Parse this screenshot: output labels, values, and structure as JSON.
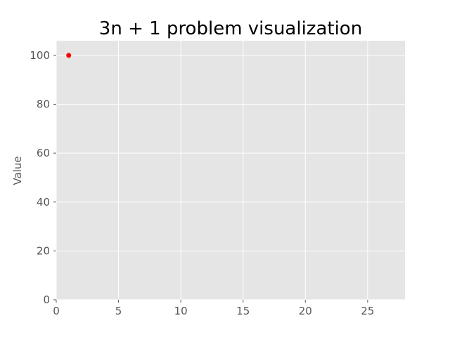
{
  "chart_data": {
    "type": "scatter",
    "title": "3n + 1 problem visualization",
    "xlabel": "",
    "ylabel": "Value",
    "xlim": [
      0,
      28
    ],
    "ylim": [
      0,
      106
    ],
    "x_ticks": [
      0,
      5,
      10,
      15,
      20,
      25
    ],
    "y_ticks": [
      0,
      20,
      40,
      60,
      80,
      100
    ],
    "grid": true,
    "legend": "none",
    "series": [
      {
        "x": [
          1
        ],
        "y": [
          100
        ]
      }
    ],
    "colors": {
      "plot_background": "#e5e5e5",
      "grid": "#ffffff",
      "point": "#ff0000",
      "tick_text": "#555555"
    }
  }
}
